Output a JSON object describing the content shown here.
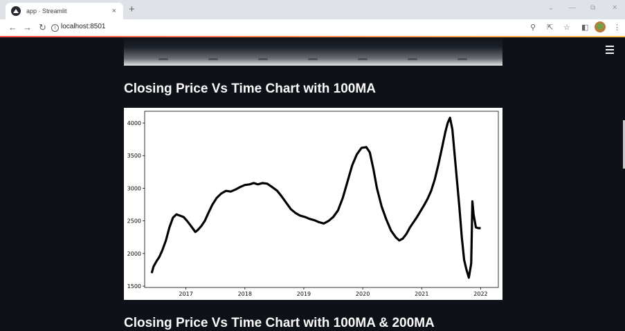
{
  "browser": {
    "tab_title": "app · Streamlit",
    "tab_close": "×",
    "new_tab": "+",
    "url": "localhost:8501"
  },
  "app": {
    "heading_1": "Closing Price Vs Time Chart with 100MA",
    "heading_2": "Closing Price Vs Time Chart with 100MA & 200MA"
  },
  "chart_data": {
    "type": "line",
    "title": "",
    "xlabel": "",
    "ylabel": "",
    "xlim": [
      2016.3,
      2022.3
    ],
    "ylim": [
      1480,
      4180
    ],
    "xticks": [
      2017,
      2018,
      2019,
      2020,
      2021,
      2022
    ],
    "xtick_labels": [
      "2017",
      "2018",
      "2019",
      "2020",
      "2021",
      "2022"
    ],
    "yticks": [
      1500,
      2000,
      2500,
      3000,
      3500,
      4000
    ],
    "ytick_labels": [
      "1500",
      "2000",
      "2500",
      "3000",
      "3500",
      "4000"
    ],
    "series": [
      {
        "color": "#000000",
        "x": [
          2016.42,
          2016.45,
          2016.5,
          2016.55,
          2016.6,
          2016.66,
          2016.72,
          2016.78,
          2016.84,
          2016.9,
          2016.96,
          2017.02,
          2017.08,
          2017.12,
          2017.16,
          2017.2,
          2017.26,
          2017.32,
          2017.38,
          2017.45,
          2017.52,
          2017.6,
          2017.68,
          2017.76,
          2017.84,
          2017.92,
          2018.0,
          2018.08,
          2018.15,
          2018.22,
          2018.3,
          2018.38,
          2018.46,
          2018.55,
          2018.62,
          2018.7,
          2018.78,
          2018.86,
          2018.94,
          2019.02,
          2019.1,
          2019.18,
          2019.26,
          2019.34,
          2019.42,
          2019.5,
          2019.58,
          2019.66,
          2019.74,
          2019.82,
          2019.9,
          2019.98,
          2020.06,
          2020.12,
          2020.18,
          2020.24,
          2020.32,
          2020.4,
          2020.48,
          2020.56,
          2020.62,
          2020.68,
          2020.74,
          2020.8,
          2020.86,
          2020.92,
          2020.98,
          2021.04,
          2021.1,
          2021.16,
          2021.22,
          2021.28,
          2021.34,
          2021.4,
          2021.44,
          2021.48,
          2021.52,
          2021.56,
          2021.6,
          2021.64,
          2021.68,
          2021.72,
          2021.76,
          2021.8,
          2021.84,
          2021.86,
          2021.88,
          2021.92,
          2021.96,
          2022.0
        ],
        "y": [
          1700,
          1800,
          1880,
          1950,
          2050,
          2200,
          2400,
          2550,
          2600,
          2580,
          2560,
          2500,
          2430,
          2380,
          2330,
          2360,
          2420,
          2500,
          2620,
          2750,
          2850,
          2920,
          2960,
          2950,
          2980,
          3020,
          3050,
          3060,
          3080,
          3060,
          3080,
          3070,
          3020,
          2960,
          2880,
          2780,
          2680,
          2620,
          2580,
          2560,
          2530,
          2510,
          2480,
          2460,
          2500,
          2560,
          2660,
          2850,
          3100,
          3350,
          3520,
          3620,
          3630,
          3550,
          3300,
          3000,
          2720,
          2520,
          2350,
          2250,
          2200,
          2230,
          2300,
          2400,
          2480,
          2560,
          2650,
          2740,
          2840,
          2960,
          3130,
          3350,
          3600,
          3860,
          4000,
          4080,
          3900,
          3500,
          3100,
          2700,
          2250,
          1900,
          1750,
          1630,
          1850,
          2800,
          2600,
          2400,
          2390,
          2390
        ]
      }
    ]
  }
}
